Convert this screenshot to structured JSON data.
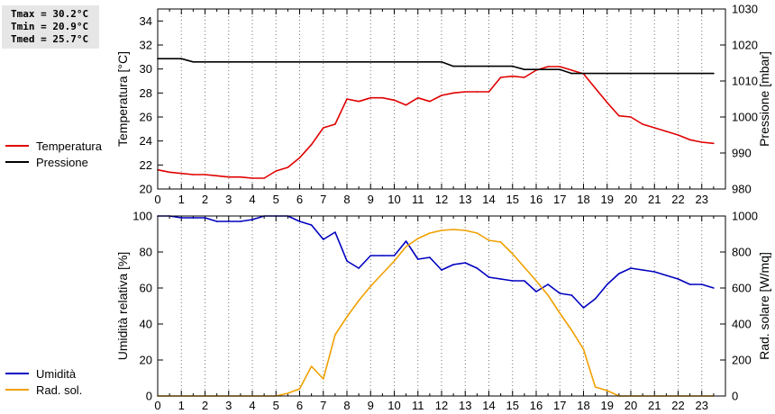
{
  "stats": {
    "tmax": "Tmax = 30.2°C",
    "tmin": "Tmin = 20.9°C",
    "tmed": "Tmed = 25.7°C"
  },
  "legend": {
    "temperatura": "Temperatura",
    "pressione": "Pressione",
    "umidita": "Umidità",
    "rad_sol": "Rad. sol."
  },
  "colors": {
    "temperatura": "#e00000",
    "pressione": "#000000",
    "umidita": "#0000c0",
    "rad_sol": "#f0a000",
    "grid": "#000000",
    "frame": "#000000"
  },
  "chart_data": [
    {
      "type": "line",
      "ylabel": "Temperatura [°C]",
      "y2label": "Pressione [mbar]",
      "xlim": [
        0,
        24
      ],
      "ylim": [
        20,
        35
      ],
      "y2lim": [
        980,
        1030
      ],
      "x_ticks": [
        "0",
        "1",
        "2",
        "3",
        "4",
        "5",
        "6",
        "7",
        "8",
        "9",
        "10",
        "11",
        "12",
        "13",
        "14",
        "15",
        "16",
        "17",
        "18",
        "19",
        "20",
        "21",
        "22",
        "23"
      ],
      "y_ticks": [
        "20",
        "22",
        "24",
        "26",
        "28",
        "30",
        "32",
        "34"
      ],
      "y2_ticks": [
        "980",
        "990",
        "1000",
        "1010",
        "1020",
        "1030"
      ],
      "grid": "vertical dotted",
      "legend_position": "left",
      "series": [
        {
          "name": "Temperatura",
          "axis": "left",
          "x": [
            0,
            0.5,
            1,
            1.5,
            2,
            2.5,
            3,
            3.5,
            4,
            4.5,
            5,
            5.5,
            6,
            6.5,
            7,
            7.5,
            8,
            8.5,
            9,
            9.5,
            10,
            10.5,
            11,
            11.5,
            12,
            12.5,
            13,
            13.5,
            14,
            14.5,
            15,
            15.5,
            16,
            16.5,
            17,
            17.5,
            18,
            18.5,
            19,
            19.5,
            20,
            20.5,
            21,
            21.5,
            22,
            22.5,
            23,
            23.5
          ],
          "values": [
            21.6,
            21.4,
            21.3,
            21.2,
            21.2,
            21.1,
            21.0,
            21.0,
            20.9,
            20.9,
            21.5,
            21.8,
            22.6,
            23.7,
            25.1,
            25.4,
            27.5,
            27.3,
            27.6,
            27.6,
            27.4,
            27.0,
            27.6,
            27.3,
            27.8,
            28.0,
            28.1,
            28.1,
            28.1,
            29.3,
            29.4,
            29.3,
            29.9,
            30.2,
            30.2,
            29.9,
            29.6,
            28.4,
            27.2,
            26.1,
            26.0,
            25.4,
            25.1,
            24.8,
            24.5,
            24.1,
            23.9,
            23.8
          ]
        },
        {
          "name": "Pressione",
          "axis": "right",
          "x": [
            0,
            1,
            1.5,
            12,
            12.5,
            15,
            15.5,
            17,
            17.5,
            23.5
          ],
          "values": [
            1016.2,
            1016.2,
            1015.3,
            1015.3,
            1014.1,
            1014.1,
            1013.2,
            1013.2,
            1012.1,
            1012.1
          ]
        }
      ]
    },
    {
      "type": "line",
      "ylabel": "Umidità relativa [%]",
      "y2label": "Rad. solare [W/mq]",
      "xlim": [
        0,
        24
      ],
      "ylim": [
        0,
        100
      ],
      "y2lim": [
        0,
        1000
      ],
      "x_ticks": [
        "0",
        "1",
        "2",
        "3",
        "4",
        "5",
        "6",
        "7",
        "8",
        "9",
        "10",
        "11",
        "12",
        "13",
        "14",
        "15",
        "16",
        "17",
        "18",
        "19",
        "20",
        "21",
        "22",
        "23"
      ],
      "y_ticks": [
        "0",
        "20",
        "40",
        "60",
        "80",
        "100"
      ],
      "y2_ticks": [
        "0",
        "200",
        "400",
        "600",
        "800",
        "1000"
      ],
      "grid": "vertical dotted",
      "legend_position": "left",
      "series": [
        {
          "name": "Umidità",
          "axis": "left",
          "x": [
            0,
            0.5,
            1,
            1.5,
            2,
            2.5,
            3,
            3.5,
            4,
            4.5,
            5,
            5.5,
            6,
            6.5,
            7,
            7.5,
            8,
            8.5,
            9,
            9.5,
            10,
            10.5,
            11,
            11.5,
            12,
            12.5,
            13,
            13.5,
            14,
            14.5,
            15,
            15.5,
            16,
            16.5,
            17,
            17.5,
            18,
            18.5,
            19,
            19.5,
            20,
            20.5,
            21,
            21.5,
            22,
            22.5,
            23,
            23.5
          ],
          "values": [
            100,
            100,
            99,
            99,
            99,
            97,
            97,
            97,
            98,
            100,
            100,
            100,
            97,
            95,
            87,
            91,
            75,
            71,
            78,
            78,
            78,
            86,
            76,
            77,
            70,
            73,
            74,
            71,
            66,
            65,
            64,
            64,
            58,
            62,
            57,
            56,
            49,
            54,
            62,
            68,
            71,
            70,
            69,
            67,
            65,
            62,
            62,
            60
          ]
        },
        {
          "name": "Rad. sol.",
          "axis": "right",
          "x": [
            0,
            5,
            5.5,
            6,
            6.5,
            7,
            7.5,
            8,
            8.5,
            9,
            9.5,
            10,
            10.5,
            11,
            11.5,
            12,
            12.5,
            13,
            13.5,
            14,
            14.5,
            15,
            15.5,
            16,
            16.5,
            17,
            17.5,
            18,
            18.5,
            19,
            19.5,
            23.5
          ],
          "values": [
            0,
            0,
            15,
            40,
            165,
            95,
            340,
            440,
            530,
            610,
            680,
            750,
            830,
            875,
            905,
            920,
            925,
            920,
            905,
            865,
            855,
            790,
            715,
            640,
            560,
            460,
            365,
            260,
            50,
            30,
            0,
            0
          ]
        }
      ]
    }
  ]
}
